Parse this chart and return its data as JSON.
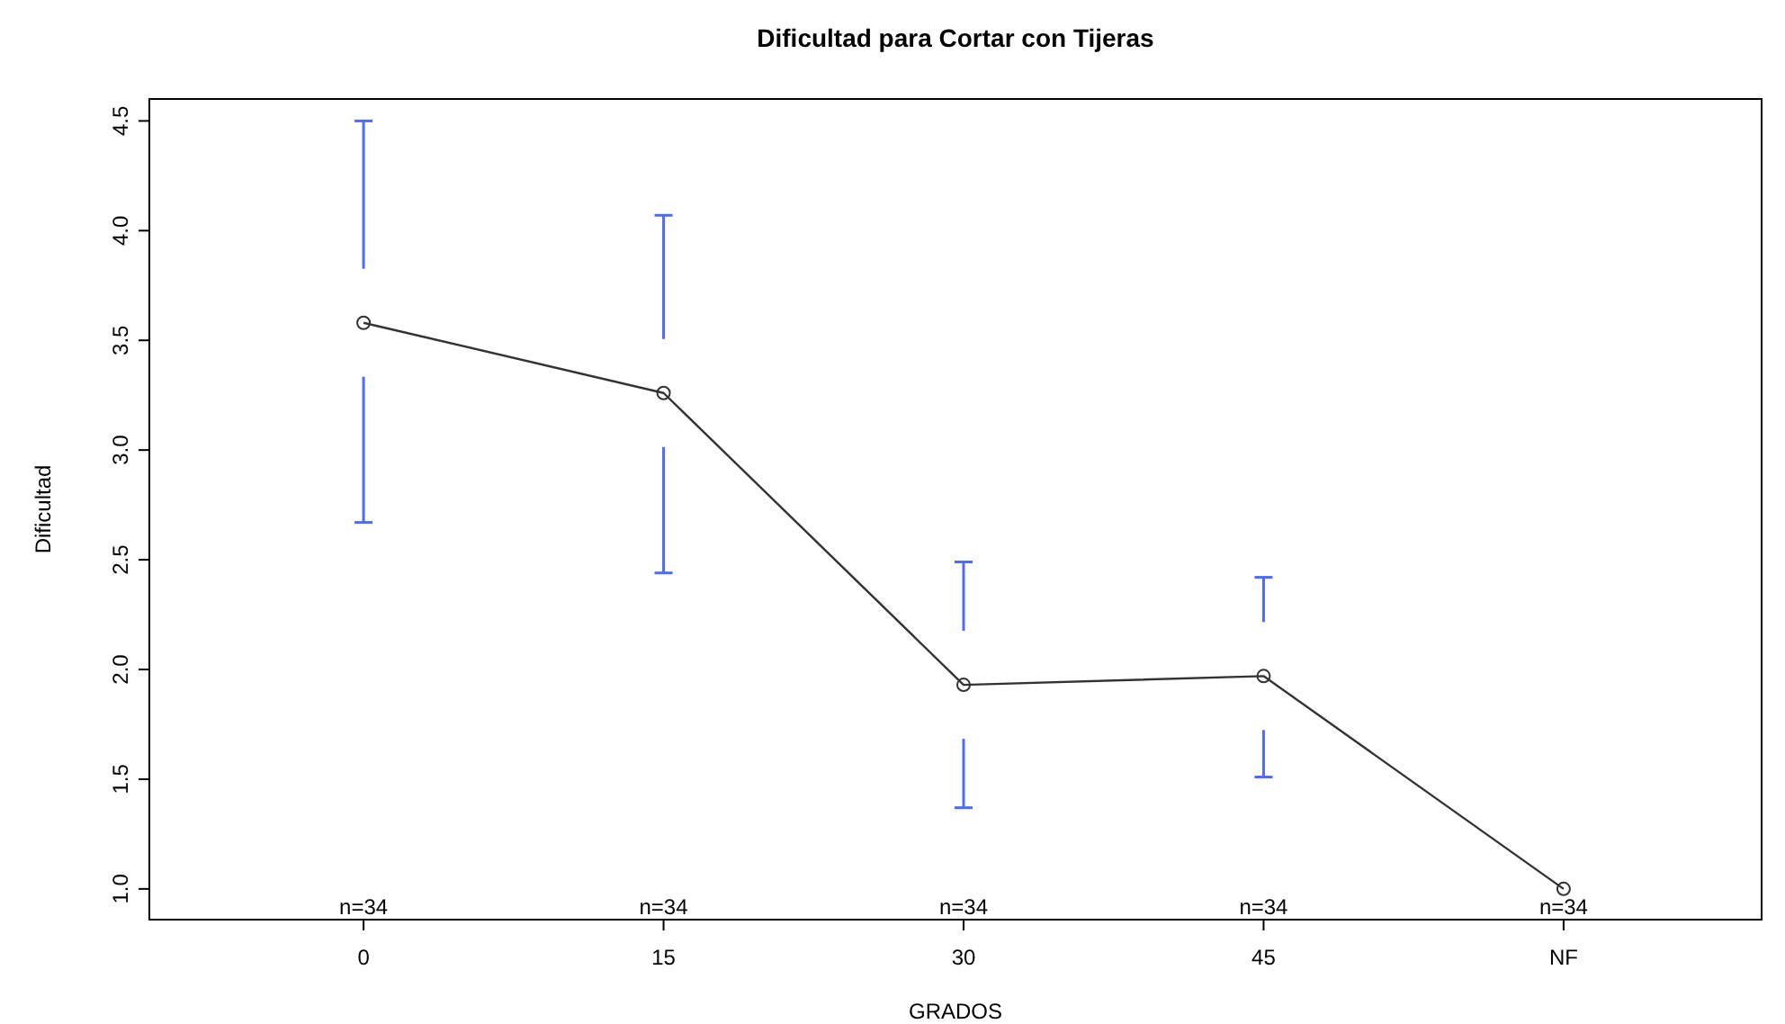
{
  "chart_data": {
    "type": "line",
    "title": "Dificultad para Cortar con Tijeras",
    "xlabel": "GRADOS",
    "ylabel": "Dificultad",
    "categories": [
      "0",
      "15",
      "30",
      "45",
      "NF"
    ],
    "series": [
      {
        "color": "#333333",
        "values": [
          3.58,
          3.26,
          1.93,
          1.97,
          1.0
        ],
        "errors": [
          [
            2.67,
            4.5
          ],
          [
            2.44,
            4.07
          ],
          [
            1.37,
            2.49
          ],
          [
            1.51,
            2.42
          ],
          null
        ]
      }
    ],
    "ylim": [
      0.86,
      4.6
    ],
    "yticks": [
      {
        "value": 1,
        "label": "1.0"
      },
      {
        "value": 1.5,
        "label": "1.5"
      },
      {
        "value": 2,
        "label": "2.0"
      },
      {
        "value": 2.5,
        "label": "2.5"
      },
      {
        "value": 3,
        "label": "3.0"
      },
      {
        "value": 3.5,
        "label": "3.5"
      },
      {
        "value": 4,
        "label": "4.0"
      },
      {
        "value": 4.5,
        "label": "4.5"
      }
    ],
    "annotations": [
      "n=34",
      "n=34",
      "n=34",
      "n=34",
      "n=34"
    ],
    "marker": "circle",
    "line_style": "solid",
    "grid": false
  }
}
